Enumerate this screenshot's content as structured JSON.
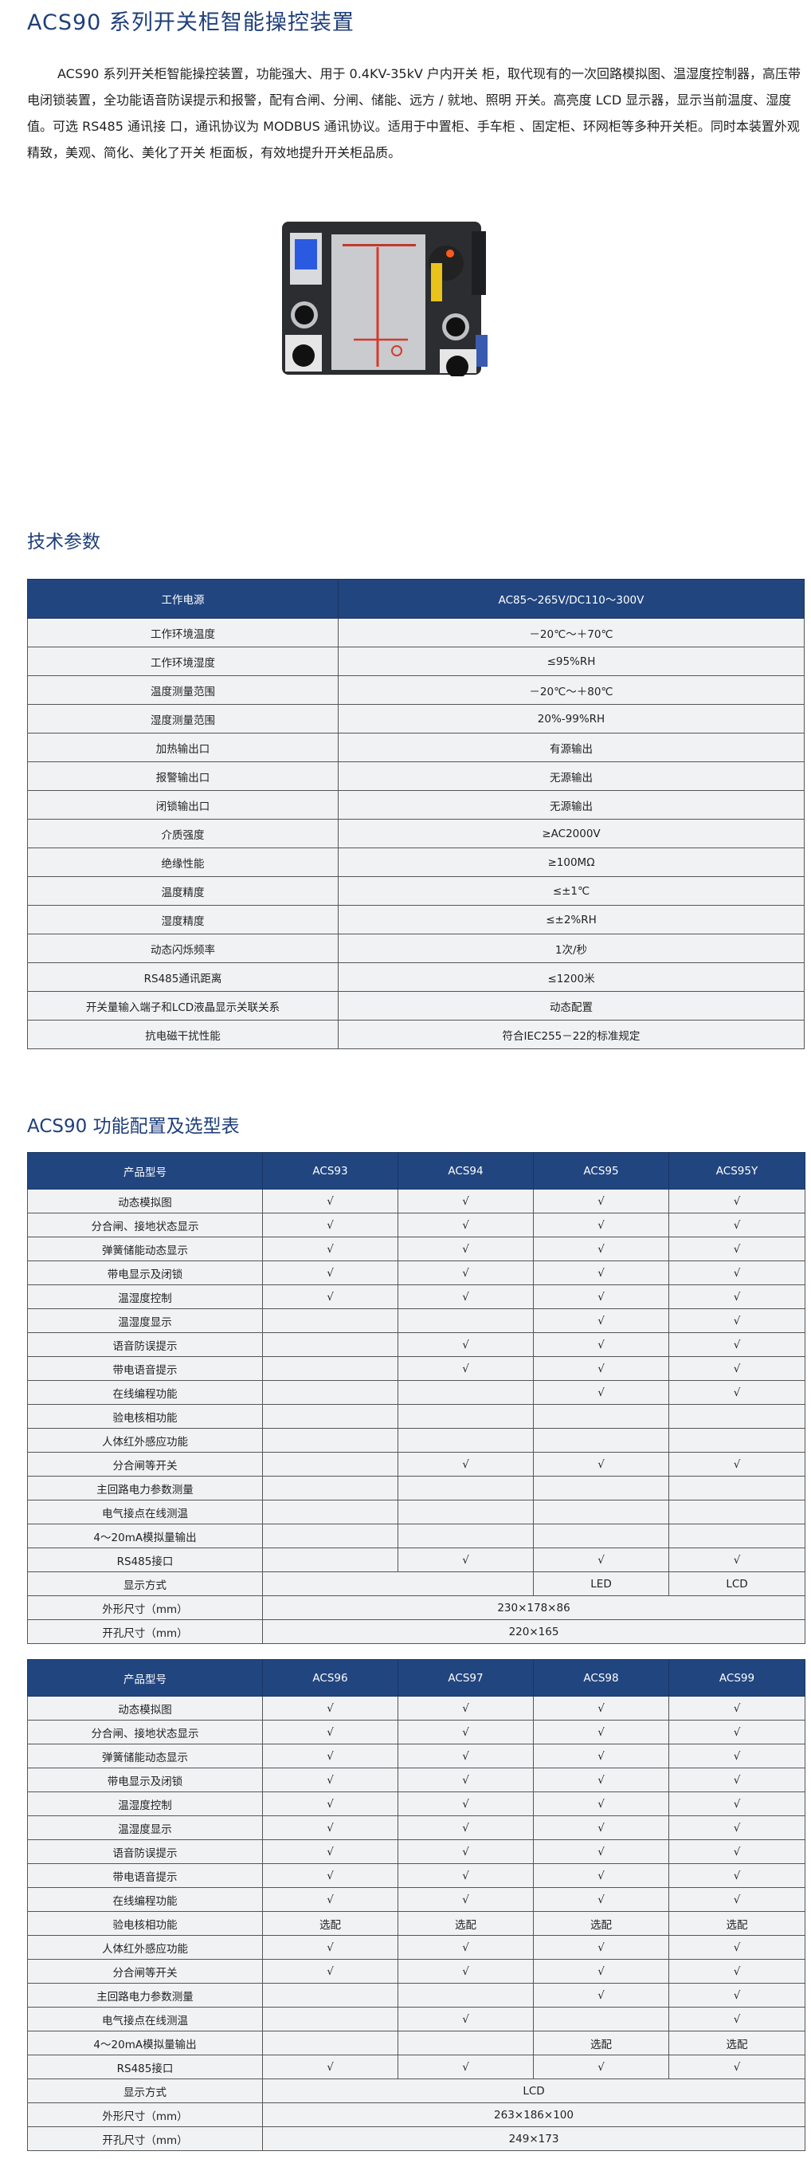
{
  "title": "ACS90 系列开关柜智能操控装置",
  "intro": "ACS90 系列开关柜智能操控装置，功能强大、用于 0.4KV-35kV 户内开关 柜，取代现有的一次回路模拟图、温湿度控制器，高压带电闭锁装置，全功能语音防误提示和报警，配有合闸、分闸、储能、远方 / 就地、照明 开关。高亮度 LCD 显示器，显示当前温度、湿度值。可选 RS485 通讯接 口，通讯协议为 MODBUS 通讯协议。适用于中置柜、手车柜 、固定柜、环网柜等多种开关柜。同时本装置外观精致，美观、简化、美化了开关 柜面板，有效地提升开关柜品质。",
  "colors": {
    "accent": "#1f3f7a",
    "header_bg": "#21457f",
    "row_bg": "#f1f2f4"
  },
  "spec": {
    "heading": "技术参数",
    "header": [
      "工作电源",
      "AC85～265V/DC110～300V"
    ],
    "rows": [
      [
        "工作环境温度",
        "－20℃～＋70℃"
      ],
      [
        "工作环境湿度",
        "≤95%RH"
      ],
      [
        "温度测量范围",
        "－20℃～＋80℃"
      ],
      [
        "湿度测量范围",
        "20%-99%RH"
      ],
      [
        "加热输出口",
        "有源输出"
      ],
      [
        "报警输出口",
        "无源输出"
      ],
      [
        "闭锁输出口",
        "无源输出"
      ],
      [
        "介质强度",
        "≥AC2000V"
      ],
      [
        "绝缘性能",
        "≥100MΩ"
      ],
      [
        "温度精度",
        "≤±1℃"
      ],
      [
        "湿度精度",
        "≤±2%RH"
      ],
      [
        "动态闪烁频率",
        "1次/秒"
      ],
      [
        "RS485通讯距离",
        "≤1200米"
      ],
      [
        "开关量输入端子和LCD液晶显示关联关系",
        "动态配置"
      ],
      [
        "抗电磁干扰性能",
        "符合IEC255－22的标准规定"
      ]
    ]
  },
  "selection": {
    "heading": "ACS90 功能配置及选型表",
    "tables": [
      {
        "header": [
          "产品型号",
          "ACS93",
          "ACS94",
          "ACS95",
          "ACS95Y"
        ],
        "rows": [
          {
            "label": "动态模拟图",
            "cells": [
              "√",
              "√",
              "√",
              "√"
            ]
          },
          {
            "label": "分合闸、接地状态显示",
            "cells": [
              "√",
              "√",
              "√",
              "√"
            ]
          },
          {
            "label": "弹簧储能动态显示",
            "cells": [
              "√",
              "√",
              "√",
              "√"
            ]
          },
          {
            "label": "带电显示及闭锁",
            "cells": [
              "√",
              "√",
              "√",
              "√"
            ]
          },
          {
            "label": "温湿度控制",
            "cells": [
              "√",
              "√",
              "√",
              "√"
            ]
          },
          {
            "label": "温湿度显示",
            "cells": [
              "",
              "",
              "√",
              "√"
            ]
          },
          {
            "label": "语音防误提示",
            "cells": [
              "",
              "√",
              "√",
              "√"
            ]
          },
          {
            "label": "带电语音提示",
            "cells": [
              "",
              "√",
              "√",
              "√"
            ]
          },
          {
            "label": "在线编程功能",
            "cells": [
              "",
              "",
              "√",
              "√"
            ]
          },
          {
            "label": "验电核相功能",
            "cells": [
              "",
              "",
              "",
              ""
            ]
          },
          {
            "label": "人体红外感应功能",
            "cells": [
              "",
              "",
              "",
              ""
            ]
          },
          {
            "label": "分合闸等开关",
            "cells": [
              "",
              "√",
              "√",
              "√"
            ]
          },
          {
            "label": "主回路电力参数测量",
            "cells": [
              "",
              "",
              "",
              ""
            ]
          },
          {
            "label": "电气接点在线测温",
            "cells": [
              "",
              "",
              "",
              ""
            ]
          },
          {
            "label": "4～20mA模拟量输出",
            "cells": [
              "",
              "",
              "",
              ""
            ]
          },
          {
            "label": "RS485接口",
            "cells": [
              "",
              "√",
              "√",
              "√"
            ]
          },
          {
            "label": "显示方式",
            "cells": [
              "",
              "LED",
              "LCD"
            ],
            "colspans": [
              2,
              1,
              1
            ]
          },
          {
            "label": "外形尺寸（mm）",
            "cells": [
              "230×178×86"
            ],
            "colspans": [
              4
            ]
          },
          {
            "label": "开孔尺寸（mm）",
            "cells": [
              "220×165"
            ],
            "colspans": [
              4
            ]
          }
        ]
      },
      {
        "header": [
          "产品型号",
          "ACS96",
          "ACS97",
          "ACS98",
          "ACS99"
        ],
        "rows": [
          {
            "label": "动态模拟图",
            "cells": [
              "√",
              "√",
              "√",
              "√"
            ]
          },
          {
            "label": "分合闸、接地状态显示",
            "cells": [
              "√",
              "√",
              "√",
              "√"
            ]
          },
          {
            "label": "弹簧储能动态显示",
            "cells": [
              "√",
              "√",
              "√",
              "√"
            ]
          },
          {
            "label": "带电显示及闭锁",
            "cells": [
              "√",
              "√",
              "√",
              "√"
            ]
          },
          {
            "label": "温湿度控制",
            "cells": [
              "√",
              "√",
              "√",
              "√"
            ]
          },
          {
            "label": "温湿度显示",
            "cells": [
              "√",
              "√",
              "√",
              "√"
            ]
          },
          {
            "label": "语音防误提示",
            "cells": [
              "√",
              "√",
              "√",
              "√"
            ]
          },
          {
            "label": "带电语音提示",
            "cells": [
              "√",
              "√",
              "√",
              "√"
            ]
          },
          {
            "label": "在线编程功能",
            "cells": [
              "√",
              "√",
              "√",
              "√"
            ]
          },
          {
            "label": "验电核相功能",
            "cells": [
              "选配",
              "选配",
              "选配",
              "选配"
            ]
          },
          {
            "label": "人体红外感应功能",
            "cells": [
              "√",
              "√",
              "√",
              "√"
            ]
          },
          {
            "label": "分合闸等开关",
            "cells": [
              "√",
              "√",
              "√",
              "√"
            ]
          },
          {
            "label": "主回路电力参数测量",
            "cells": [
              "",
              "",
              "√",
              "√"
            ]
          },
          {
            "label": "电气接点在线测温",
            "cells": [
              "",
              "√",
              "",
              "√"
            ]
          },
          {
            "label": "4～20mA模拟量输出",
            "cells": [
              "",
              "",
              "选配",
              "选配"
            ]
          },
          {
            "label": "RS485接口",
            "cells": [
              "√",
              "√",
              "√",
              "√"
            ]
          },
          {
            "label": "显示方式",
            "cells": [
              "LCD"
            ],
            "colspans": [
              4
            ]
          },
          {
            "label": "外形尺寸（mm）",
            "cells": [
              "263×186×100"
            ],
            "colspans": [
              4
            ]
          },
          {
            "label": "开孔尺寸（mm）",
            "cells": [
              "249×173"
            ],
            "colspans": [
              4
            ]
          }
        ]
      }
    ]
  }
}
